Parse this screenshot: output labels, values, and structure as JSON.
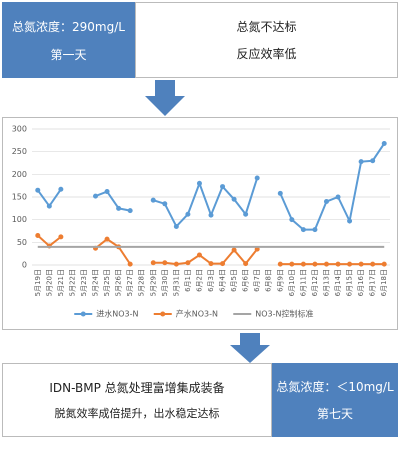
{
  "top": {
    "concentration": "总氮浓度：290mg/L",
    "day": "第一天",
    "status": "总氮不达标",
    "efficiency": "反应效率低"
  },
  "bottom": {
    "device": "IDN-BMP 总氮处理富增集成装备",
    "result": "脱氮效率成倍提升，出水稳定达标",
    "concentration": "总氮浓度：＜10mg/L",
    "day": "第七天"
  },
  "chart_data": {
    "type": "line",
    "categories": [
      "5月19日",
      "5月20日",
      "5月21日",
      "5月22日",
      "5月23日",
      "5月24日",
      "5月25日",
      "5月26日",
      "5月27日",
      "5月28日",
      "5月29日",
      "5月30日",
      "5月31日",
      "6月1日",
      "6月2日",
      "6月3日",
      "6月4日",
      "6月5日",
      "6月6日",
      "6月7日",
      "6月8日",
      "6月9日",
      "6月10日",
      "6月11日",
      "6月12日",
      "6月13日",
      "6月14日",
      "6月15日",
      "6月16日",
      "6月17日",
      "6月18日"
    ],
    "series": [
      {
        "name": "进水NO3-N",
        "color": "#5b9bd5",
        "markers": true,
        "values": [
          165,
          130,
          167,
          null,
          null,
          152,
          162,
          125,
          120,
          null,
          143,
          135,
          85,
          112,
          180,
          110,
          173,
          145,
          112,
          192,
          null,
          158,
          100,
          78,
          78,
          140,
          150,
          97,
          228,
          230,
          268
        ]
      },
      {
        "name": "产水NO3-N",
        "color": "#ed7d31",
        "markers": true,
        "values": [
          65,
          42,
          62,
          null,
          null,
          37,
          57,
          40,
          2,
          null,
          5,
          5,
          2,
          5,
          22,
          3,
          3,
          33,
          3,
          35,
          null,
          2,
          2,
          2,
          2,
          2,
          2,
          2,
          2,
          2,
          2
        ]
      },
      {
        "name": "NO3-N控制标准",
        "color": "#a5a5a5",
        "markers": false,
        "values": [
          40,
          40,
          40,
          40,
          40,
          40,
          40,
          40,
          40,
          40,
          40,
          40,
          40,
          40,
          40,
          40,
          40,
          40,
          40,
          40,
          40,
          40,
          40,
          40,
          40,
          40,
          40,
          40,
          40,
          40,
          40
        ]
      }
    ],
    "ylim": [
      0,
      300
    ],
    "yticks": [
      0,
      50,
      100,
      150,
      200,
      250,
      300
    ],
    "grid": true,
    "legend": "bottom"
  }
}
